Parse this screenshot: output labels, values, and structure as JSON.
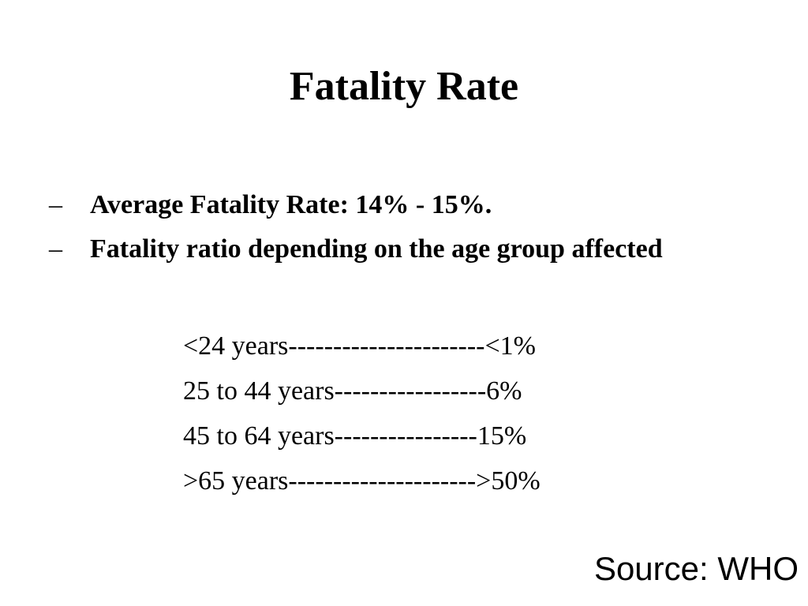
{
  "slide": {
    "title": "Fatality Rate",
    "bullet_marker": "–",
    "bullets": [
      "Average Fatality Rate: 14% - 15%.",
      "Fatality ratio depending on the age group affected"
    ],
    "age_rates": [
      "<24 years----------------------<1%",
      "25 to 44 years-----------------6%",
      "45 to 64 years----------------15%",
      ">65 years--------------------->50%"
    ],
    "source": "Source: WHO"
  }
}
